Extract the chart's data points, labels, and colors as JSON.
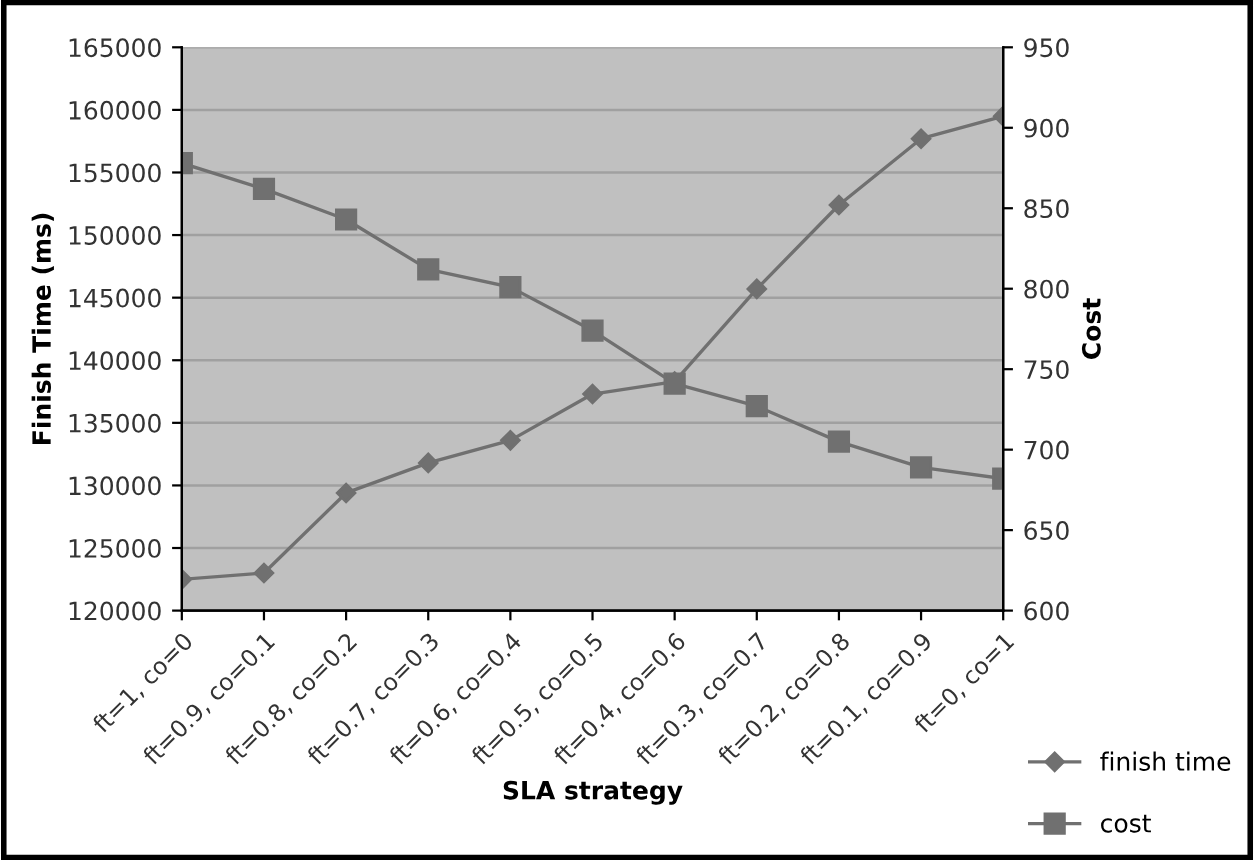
{
  "chart_data": {
    "type": "line",
    "xlabel": "SLA strategy",
    "ylabel": "Finish Time (ms)",
    "y2label": "Cost",
    "categories": [
      "ft=1, co=0",
      "ft=0.9, co=0.1",
      "ft=0.8, co=0.2",
      "ft=0.7, co=0.3",
      "ft=0.6, co=0.4",
      "ft=0.5, co=0.5",
      "ft=0.4, co=0.6",
      "ft=0.3, co=0.7",
      "ft=0.2, co=0.8",
      "ft=0.1, co=0.9",
      "ft=0, co=1"
    ],
    "series": [
      {
        "name": "finish time",
        "color": "#707070",
        "marker": "diamond",
        "values": [
          122500,
          123000,
          129400,
          131800,
          133600,
          137300,
          138300,
          145700,
          152400,
          157700,
          159500
        ]
      },
      {
        "name": "cost",
        "color": "#707070",
        "marker": "square",
        "axis": "y2",
        "values": [
          878,
          862,
          843,
          812,
          801,
          774,
          741,
          727,
          705,
          689,
          682
        ]
      }
    ],
    "ylim": [
      120000,
      165000
    ],
    "yticks": [
      120000,
      125000,
      130000,
      135000,
      140000,
      145000,
      150000,
      155000,
      160000,
      165000
    ],
    "y2lim": [
      600,
      950
    ],
    "y2ticks": [
      600,
      650,
      700,
      750,
      800,
      850,
      900,
      950
    ],
    "grid": "y",
    "legend": "bottom right"
  }
}
